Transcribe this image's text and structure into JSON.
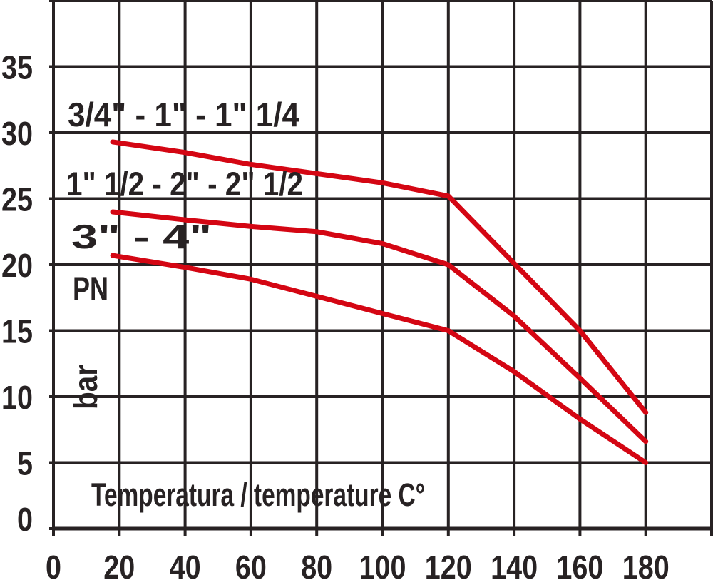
{
  "chart_data": {
    "type": "line",
    "title": "",
    "xlabel": "Temperatura / temperature C°",
    "ylabel": "PN",
    "ylabel_unit": "bar",
    "xlim": [
      0,
      200
    ],
    "ylim": [
      0,
      40
    ],
    "x_grid_step": 20,
    "y_grid_step": 5,
    "grid": true,
    "legend_position": "inline-left",
    "x_ticks": [
      "0",
      "20",
      "40",
      "60",
      "80",
      "100",
      "120",
      "140",
      "160",
      "180"
    ],
    "y_ticks": [
      "35",
      "30",
      "25",
      "20",
      "15",
      "10",
      "5",
      "0"
    ],
    "series": [
      {
        "name": "3/4\" - 1\" - 1\" 1/4",
        "points": [
          [
            18,
            29.3
          ],
          [
            40,
            28.5
          ],
          [
            60,
            27.6
          ],
          [
            80,
            26.9
          ],
          [
            100,
            26.2
          ],
          [
            120,
            25.2
          ],
          [
            140,
            20.1
          ],
          [
            160,
            15.0
          ],
          [
            180,
            8.8
          ]
        ]
      },
      {
        "name": "1\" 1/2 - 2\" - 2\" 1/2",
        "points": [
          [
            18,
            24.0
          ],
          [
            40,
            23.4
          ],
          [
            60,
            22.9
          ],
          [
            80,
            22.5
          ],
          [
            100,
            21.6
          ],
          [
            120,
            20.0
          ],
          [
            140,
            16.1
          ],
          [
            160,
            11.4
          ],
          [
            180,
            6.6
          ]
        ]
      },
      {
        "name": "3\" - 4\"",
        "points": [
          [
            18,
            20.7
          ],
          [
            40,
            19.8
          ],
          [
            60,
            18.9
          ],
          [
            80,
            17.6
          ],
          [
            100,
            16.3
          ],
          [
            120,
            15.0
          ],
          [
            140,
            11.9
          ],
          [
            160,
            8.3
          ],
          [
            180,
            5.0
          ]
        ]
      }
    ],
    "line_color": "#d40613",
    "grid_color": "#272223",
    "text_color": "#272223"
  }
}
